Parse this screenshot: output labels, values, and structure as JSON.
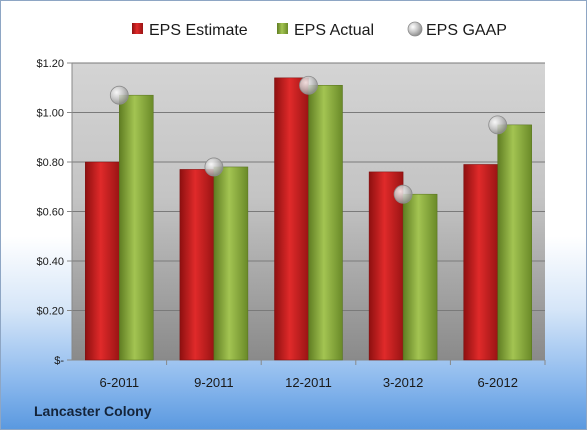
{
  "company_label": "Lancaster Colony",
  "colors": {
    "estimate": "#cc1f1f",
    "actual": "#8fb33c",
    "gaap": "#b9b9b9",
    "text": "#1a1a1a"
  },
  "chart_data": {
    "type": "bar",
    "categories": [
      "6-2011",
      "9-2011",
      "12-2011",
      "3-2012",
      "6-2012"
    ],
    "series": [
      {
        "name": "EPS Estimate",
        "kind": "bar",
        "values": [
          0.8,
          0.77,
          1.14,
          0.76,
          0.79
        ]
      },
      {
        "name": "EPS Actual",
        "kind": "bar",
        "values": [
          1.07,
          0.78,
          1.11,
          0.67,
          0.95
        ]
      },
      {
        "name": "EPS GAAP",
        "kind": "marker",
        "values": [
          1.07,
          0.78,
          1.11,
          0.67,
          0.95
        ]
      }
    ],
    "y_ticks": [
      0,
      0.2,
      0.4,
      0.6,
      0.8,
      1.0,
      1.2
    ],
    "y_tick_labels": [
      "$-",
      "$0.20",
      "$0.40",
      "$0.60",
      "$0.80",
      "$1.00",
      "$1.20"
    ],
    "ylim": [
      0,
      1.2
    ],
    "grid": true,
    "legend_position": "top"
  }
}
